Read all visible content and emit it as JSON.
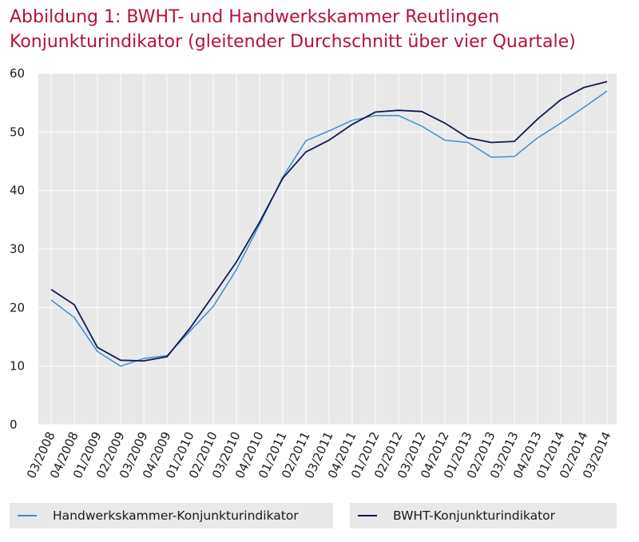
{
  "title": {
    "line1": "Abbildung 1: BWHT- und Handwerkskammer  Reutlingen",
    "line2": "Konjunkturindikator (gleitender Durchschnitt über vier Quartale)"
  },
  "colors": {
    "title": "#b5123a",
    "plot_bg": "#e8e8e8",
    "grid": "#ffffff",
    "series_handwerk": "#3a8fcf",
    "series_bwht": "#0e1a4f"
  },
  "chart_data": {
    "type": "line",
    "title": "Abbildung 1: BWHT- und Handwerkskammer  Reutlingen Konjunkturindikator (gleitender Durchschnitt über vier Quartale)",
    "xlabel": "",
    "ylabel": "",
    "ylim": [
      0,
      60
    ],
    "yticks": [
      0,
      10,
      20,
      30,
      40,
      50,
      60
    ],
    "grid": true,
    "legend_position": "bottom",
    "categories": [
      "03/2008",
      "04/2008",
      "01/2009",
      "02/2009",
      "03/2009",
      "04/2009",
      "01/2010",
      "02/2010",
      "03/2010",
      "04/2010",
      "01/2011",
      "02/2011",
      "03/2011",
      "04/2011",
      "01/2012",
      "02/2012",
      "03/2012",
      "04/2012",
      "01/2013",
      "02/2013",
      "03/2013",
      "04/2013",
      "01/2014",
      "02/2014",
      "03/2014"
    ],
    "series": [
      {
        "name": "Handwerkskammer-Konjunkturindikator",
        "values": [
          21.3,
          18.3,
          12.5,
          10.0,
          11.3,
          11.8,
          16.0,
          20.2,
          26.5,
          34.2,
          42.3,
          48.5,
          50.2,
          52.0,
          52.8,
          52.8,
          51.0,
          48.6,
          48.2,
          45.7,
          45.8,
          49.0,
          51.5,
          54.2,
          57.0
        ]
      },
      {
        "name": "BWHT-Konjunkturindikator",
        "values": [
          23.1,
          20.5,
          13.2,
          11.0,
          10.9,
          11.6,
          16.5,
          22.1,
          27.8,
          34.6,
          42.1,
          46.6,
          48.6,
          51.3,
          53.4,
          53.7,
          53.5,
          51.5,
          49.0,
          48.2,
          48.4,
          52.2,
          55.5,
          57.6,
          58.6
        ]
      }
    ]
  }
}
